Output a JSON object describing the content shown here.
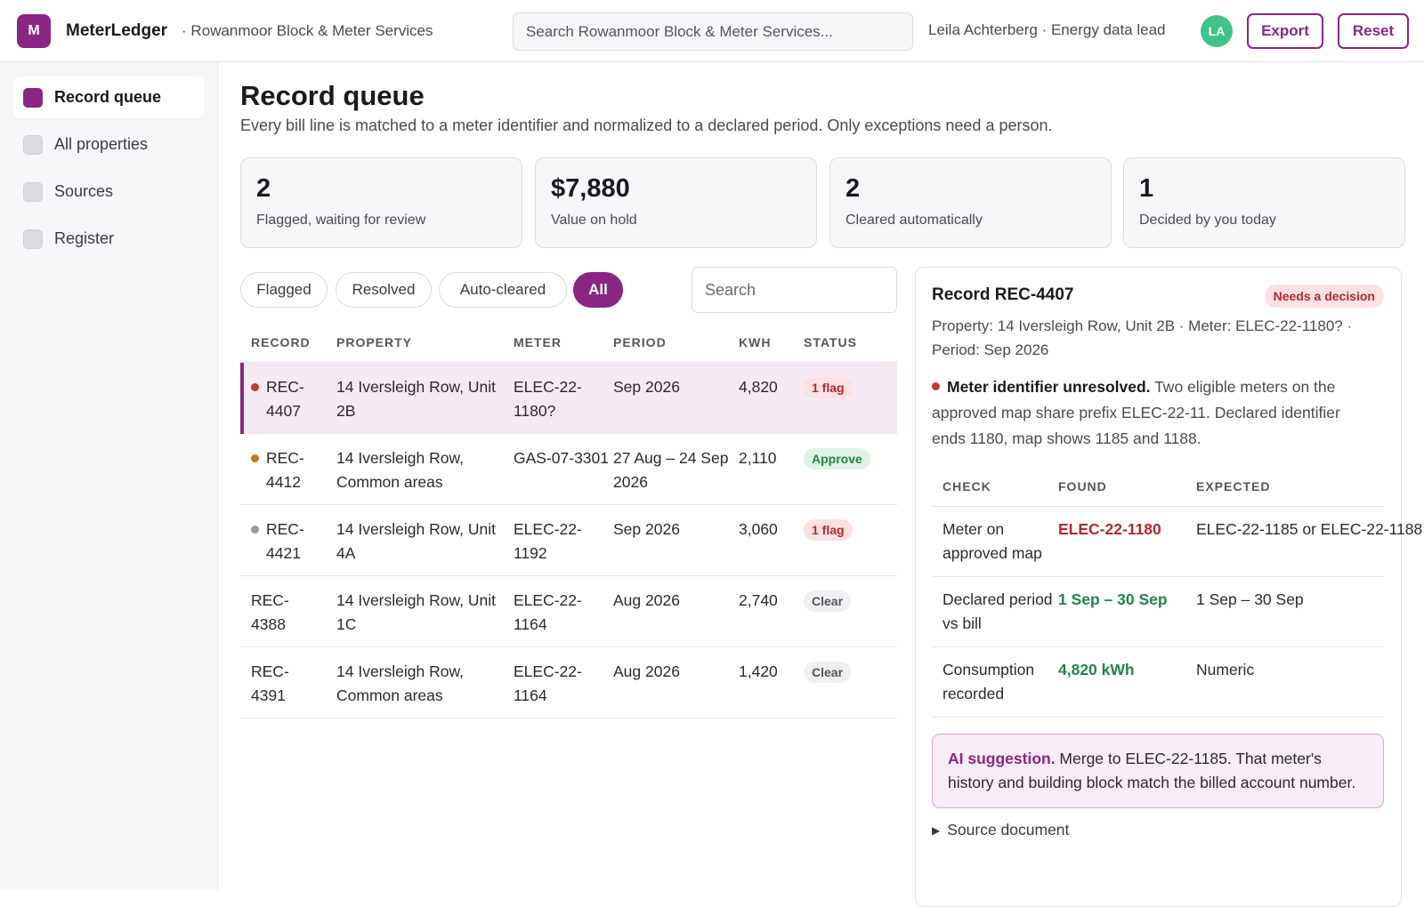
{
  "app": {
    "logo_letter": "M",
    "name": "MeterLedger",
    "org": "· Rowanmoor Block & Meter Services",
    "search_placeholder": "Search Rowanmoor Block & Meter Services...",
    "user": "Leila Achterberg · Energy data lead",
    "avatar": "LA",
    "export_label": "Export",
    "reset_label": "Reset",
    "accent_color": "#8a2682"
  },
  "sidebar": {
    "items": [
      {
        "label": "Record queue",
        "active": true
      },
      {
        "label": "All properties",
        "active": false
      },
      {
        "label": "Sources",
        "active": false
      },
      {
        "label": "Register",
        "active": false
      }
    ]
  },
  "page": {
    "title": "Record queue",
    "subtitle": "Every bill line is matched to a meter identifier and normalized to a declared period. Only exceptions need a person."
  },
  "stats": [
    {
      "value": "2",
      "label": "Flagged, waiting for review"
    },
    {
      "value": "$7,880",
      "label": "Value on hold"
    },
    {
      "value": "2",
      "label": "Cleared automatically"
    },
    {
      "value": "1",
      "label": "Decided by you today"
    }
  ],
  "filters": {
    "items": [
      "Flagged",
      "Resolved",
      "Auto-cleared",
      "All"
    ],
    "active": "All",
    "search_placeholder": "Search"
  },
  "table": {
    "headers": [
      "RECORD",
      "PROPERTY",
      "METER",
      "PERIOD",
      "KWH",
      "STATUS"
    ],
    "rows": [
      {
        "record": "REC-4407",
        "property": "14 Iversleigh Row, Unit 2B",
        "meter": "ELEC-22-1180?",
        "period": "Sep 2026",
        "kwh": "4,820",
        "status": "1 flag",
        "status_type": "flag",
        "dot": "#c0392b",
        "selected": true
      },
      {
        "record": "REC-4412",
        "property": "14 Iversleigh Row, Common areas",
        "meter": "GAS-07-3301",
        "period": "27 Aug – 24 Sep 2026",
        "kwh": "2,110",
        "status": "Approve",
        "status_type": "approve",
        "dot": "#c9731f",
        "selected": false
      },
      {
        "record": "REC-4421",
        "property": "14 Iversleigh Row, Unit 4A",
        "meter": "ELEC-22-1192",
        "period": "Sep 2026",
        "kwh": "3,060",
        "status": "1 flag",
        "status_type": "flag",
        "dot": "#9a98a2",
        "selected": false
      },
      {
        "record": "REC-4388",
        "property": "14 Iversleigh Row, Unit 1C",
        "meter": "ELEC-22-1164",
        "period": "Aug 2026",
        "kwh": "2,740",
        "status": "Clear",
        "status_type": "clear",
        "dot": "",
        "selected": false
      },
      {
        "record": "REC-4391",
        "property": "14 Iversleigh Row, Common areas",
        "meter": "ELEC-22-1164",
        "period": "Aug 2026",
        "kwh": "1,420",
        "status": "Clear",
        "status_type": "clear",
        "dot": "",
        "selected": false
      }
    ]
  },
  "detail": {
    "title": "Record REC-4407",
    "badge": "Needs a decision",
    "meta": "Property: 14 Iversleigh Row, Unit 2B · Meter: ELEC-22-1180? · Period: Sep 2026",
    "issue_title": "Meter identifier unresolved.",
    "issue_text": " Two eligible meters on the approved map share prefix ELEC-22-11. Declared identifier ends 1180, map shows 1185 and 1188.",
    "checks_headers": [
      "CHECK",
      "FOUND",
      "EXPECTED"
    ],
    "checks": [
      {
        "check": "Meter on approved map",
        "found": "ELEC-22-1180",
        "found_state": "bad",
        "expected": "ELEC-22-1185 or ELEC-22-1188"
      },
      {
        "check": "Declared period vs bill",
        "found": "1 Sep – 30 Sep",
        "found_state": "ok",
        "expected": "1 Sep – 30 Sep"
      },
      {
        "check": "Consumption recorded",
        "found": "4,820 kWh",
        "found_state": "ok",
        "expected": "Numeric"
      }
    ],
    "ai_label": "AI suggestion.",
    "ai_text": " Merge to ELEC-22-1185. That meter's history and building block match the billed account number.",
    "source_label": "Source document"
  }
}
